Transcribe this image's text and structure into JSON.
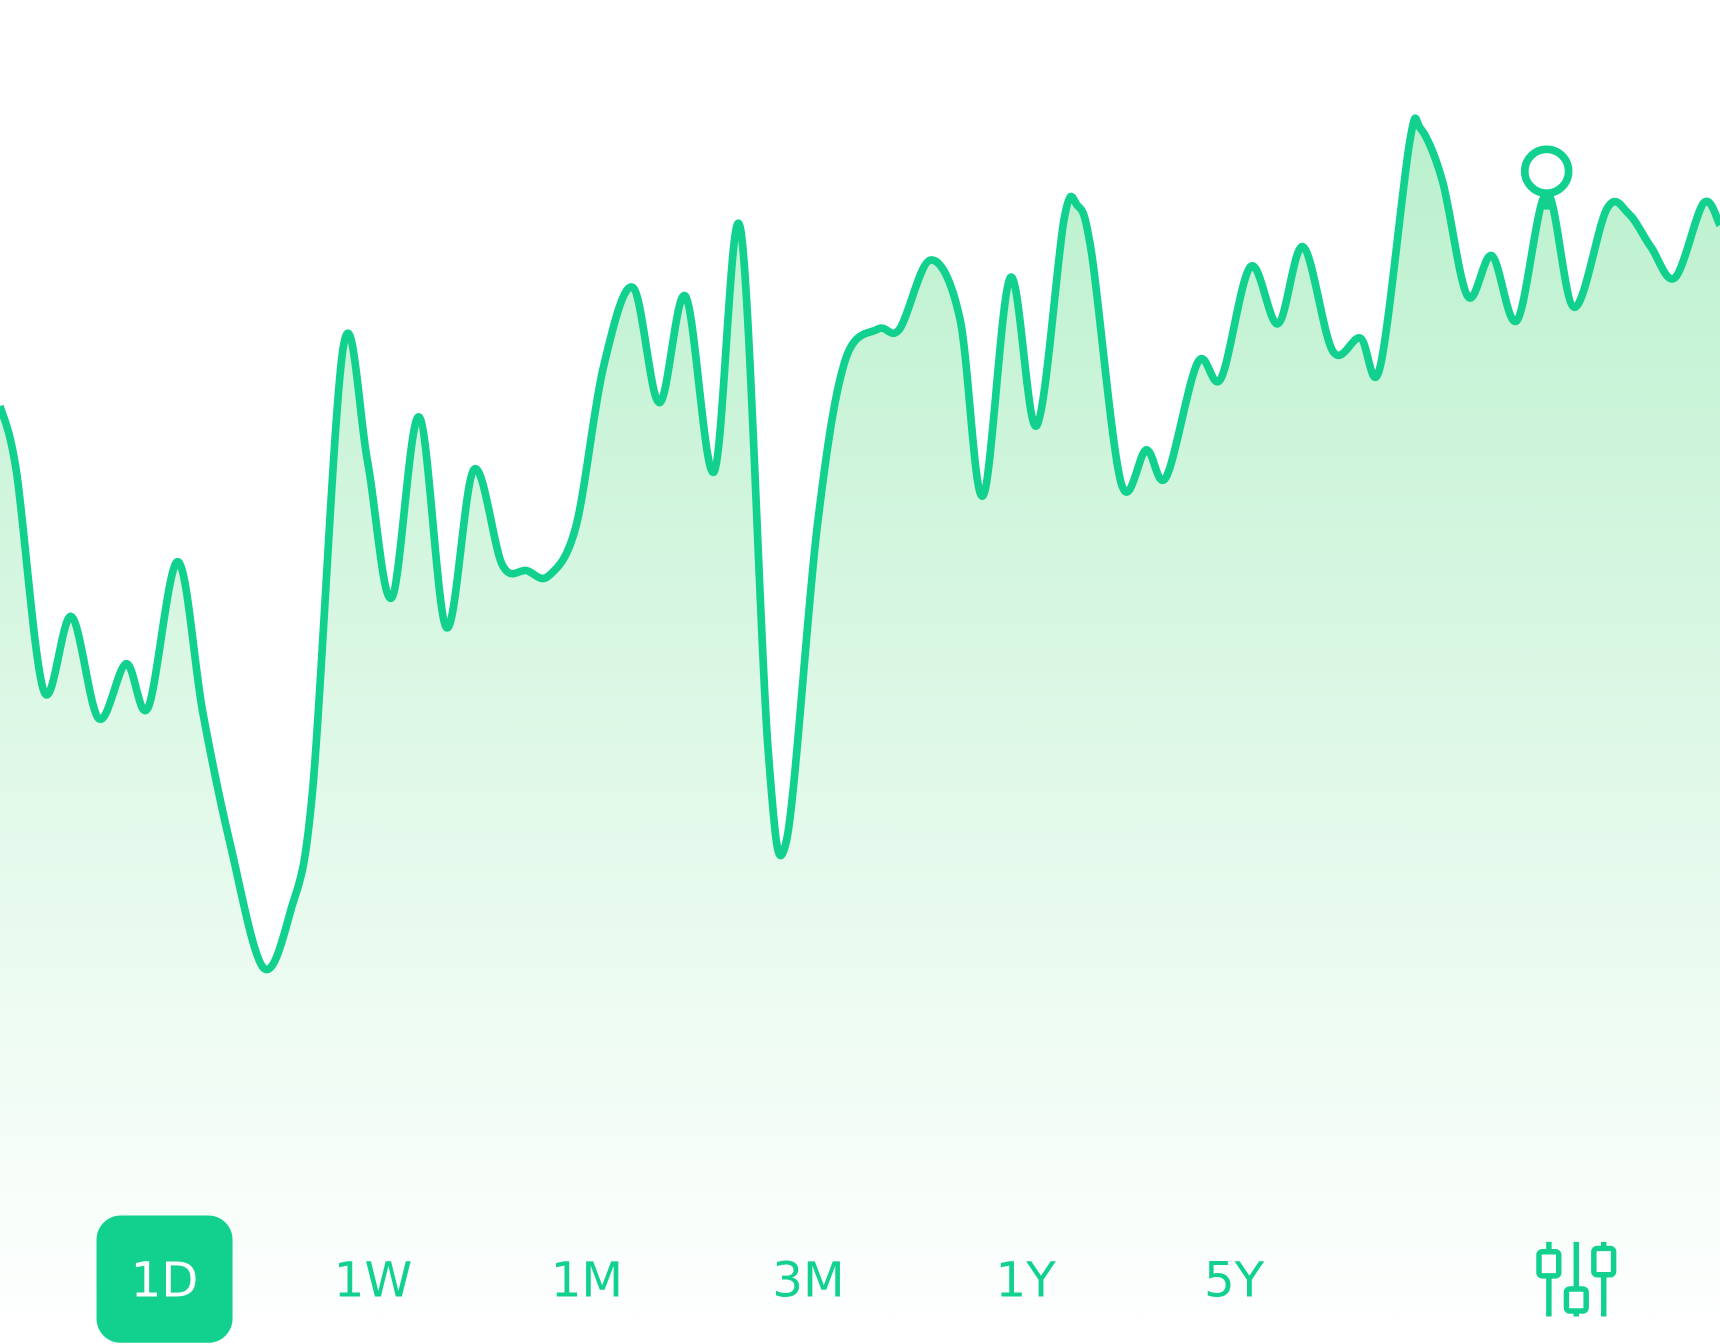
{
  "chart_data": {
    "type": "line",
    "color": "#12d18e",
    "x": [
      0,
      15,
      40,
      65,
      90,
      115,
      135,
      162,
      185,
      210,
      240,
      265,
      285,
      313,
      335,
      357,
      382,
      407,
      432,
      458,
      480,
      500,
      525,
      550,
      577,
      601,
      625,
      651,
      675,
      700,
      717,
      745,
      770,
      800,
      820,
      848,
      875,
      896,
      921,
      945,
      970,
      982,
      995,
      1022,
      1045,
      1063,
      1092,
      1113,
      1140,
      1165,
      1188,
      1215,
      1240,
      1258,
      1285,
      1295,
      1315,
      1338,
      1360,
      1383,
      1410,
      1435,
      1465,
      1485,
      1505,
      1527,
      1553,
      1568
    ],
    "values": [
      63,
      57,
      37,
      43.8,
      34.5,
      39.5,
      35.5,
      48.8,
      35,
      23,
      11.8,
      17,
      28,
      68.4,
      58,
      45.5,
      62,
      42.8,
      57.2,
      48.5,
      48,
      47.5,
      52,
      66.5,
      73.8,
      63.3,
      73,
      57,
      79.2,
      32,
      23.4,
      52,
      67,
      70,
      70,
      76.3,
      71,
      54.8,
      74.7,
      61.2,
      80,
      81.3,
      77,
      56,
      59,
      56.5,
      67,
      65.5,
      75.7,
      70.5,
      77.5,
      68,
      69.2,
      66.5,
      87,
      88.3,
      83.5,
      73,
      76.7,
      70.8,
      82.4,
      72,
      81,
      80.5,
      77.5,
      74.7,
      81.5,
      79.5
    ],
    "xlim": [
      0,
      1568
    ],
    "ylim": [
      0,
      100
    ],
    "marker_index": 60
  },
  "range_buttons": {
    "labels": [
      "1D",
      "1W",
      "1M",
      "3M",
      "1Y",
      "5Y"
    ],
    "selected": 0
  }
}
